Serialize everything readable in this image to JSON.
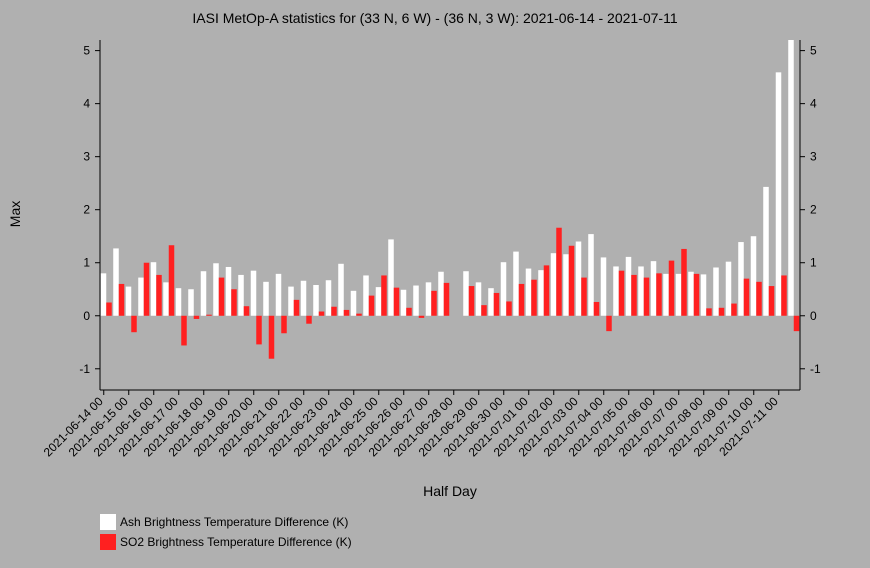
{
  "chart_data": {
    "type": "bar",
    "title": "IASI MetOp-A statistics for (33 N, 6 W) - (36 N, 3 W): 2021-06-14 - 2021-07-11",
    "xlabel": "Half Day",
    "ylabel": "Max",
    "ylim": [
      -1.4,
      5.2
    ],
    "yticks": [
      -1,
      0,
      1,
      2,
      3,
      4,
      5
    ],
    "grid": false,
    "legend_position": "bottom-left",
    "tick_labels": [
      "2021-06-14 00",
      "2021-06-15 00",
      "2021-06-16 00",
      "2021-06-17 00",
      "2021-06-18 00",
      "2021-06-19 00",
      "2021-06-20 00",
      "2021-06-21 00",
      "2021-06-22 00",
      "2021-06-23 00",
      "2021-06-24 00",
      "2021-06-25 00",
      "2021-06-26 00",
      "2021-06-27 00",
      "2021-06-28 00",
      "2021-06-29 00",
      "2021-06-30 00",
      "2021-07-01 00",
      "2021-07-02 00",
      "2021-07-03 00",
      "2021-07-04 00",
      "2021-07-05 00",
      "2021-07-06 00",
      "2021-07-07 00",
      "2021-07-08 00",
      "2021-07-09 00",
      "2021-07-10 00",
      "2021-07-11 00"
    ],
    "series": [
      {
        "name": "Ash Brightness Temperature Difference (K)",
        "color": "#ffffff",
        "values": [
          0.8,
          1.27,
          0.55,
          0.72,
          1.01,
          0.63,
          0.52,
          0.5,
          0.84,
          0.99,
          0.92,
          0.77,
          0.85,
          0.64,
          0.79,
          0.55,
          0.66,
          0.58,
          0.67,
          0.98,
          0.47,
          0.76,
          0.54,
          1.44,
          0.49,
          0.57,
          0.63,
          0.83,
          null,
          0.84,
          0.63,
          0.52,
          1.01,
          1.21,
          0.89,
          0.86,
          1.18,
          1.16,
          1.4,
          1.54,
          1.1,
          0.93,
          1.11,
          0.93,
          1.03,
          0.79,
          0.79,
          0.83,
          0.78,
          0.91,
          1.02,
          1.39,
          1.5,
          2.43,
          4.59,
          5.2
        ]
      },
      {
        "name": "SO2 Brightness Temperature Difference (K)",
        "color": "#ff2020",
        "values": [
          0.25,
          0.6,
          -0.31,
          1.0,
          0.77,
          1.33,
          -0.56,
          -0.06,
          0.02,
          0.72,
          0.5,
          0.18,
          -0.54,
          -0.81,
          -0.33,
          0.3,
          -0.15,
          0.08,
          0.17,
          0.11,
          0.04,
          0.38,
          0.76,
          0.53,
          0.15,
          -0.04,
          0.47,
          0.62,
          null,
          0.56,
          0.2,
          0.43,
          0.27,
          0.6,
          0.68,
          0.95,
          1.66,
          1.32,
          0.72,
          0.26,
          -0.29,
          0.85,
          0.77,
          0.72,
          0.8,
          1.04,
          1.26,
          0.79,
          0.14,
          0.15,
          0.23,
          0.7,
          0.64,
          0.56,
          0.76,
          -0.29
        ]
      }
    ]
  }
}
